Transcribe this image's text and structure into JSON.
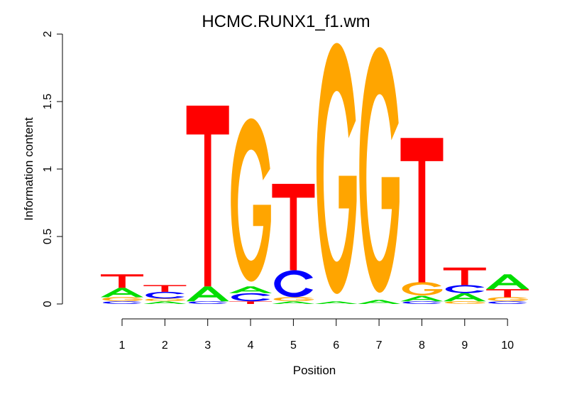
{
  "chart_data": {
    "type": "sequence-logo",
    "title": "HCMC.RUNX1_f1.wm",
    "xlabel": "Position",
    "ylabel": "Information content",
    "ylim": [
      0,
      2
    ],
    "yticks": [
      "0",
      "0.5",
      "1",
      "1.5",
      "2"
    ],
    "categories": [
      "1",
      "2",
      "3",
      "4",
      "5",
      "6",
      "7",
      "8",
      "9",
      "10"
    ],
    "colors": {
      "A": "#00dd00",
      "C": "#0000ff",
      "G": "#ffa500",
      "T": "#ff0000"
    },
    "positions": [
      [
        [
          "C",
          0.02
        ],
        [
          "G",
          0.03
        ],
        [
          "A",
          0.07
        ],
        [
          "T",
          0.1
        ]
      ],
      [
        [
          "A",
          0.02
        ],
        [
          "G",
          0.02
        ],
        [
          "C",
          0.05
        ],
        [
          "T",
          0.05
        ]
      ],
      [
        [
          "C",
          0.02
        ],
        [
          "A",
          0.11
        ],
        [
          "T",
          1.34
        ]
      ],
      [
        [
          "T",
          0.02
        ],
        [
          "C",
          0.06
        ],
        [
          "A",
          0.05
        ],
        [
          "G",
          1.21
        ]
      ],
      [
        [
          "A",
          0.02
        ],
        [
          "G",
          0.03
        ],
        [
          "C",
          0.2
        ],
        [
          "T",
          0.64
        ]
      ],
      [
        [
          "A",
          0.02
        ],
        [
          "G",
          1.86
        ]
      ],
      [
        [
          "A",
          0.03
        ],
        [
          "G",
          1.82
        ]
      ],
      [
        [
          "C",
          0.02
        ],
        [
          "A",
          0.04
        ],
        [
          "G",
          0.1
        ],
        [
          "T",
          1.07
        ]
      ],
      [
        [
          "G",
          0.02
        ],
        [
          "A",
          0.06
        ],
        [
          "C",
          0.06
        ],
        [
          "T",
          0.13
        ]
      ],
      [
        [
          "C",
          0.02
        ],
        [
          "G",
          0.03
        ],
        [
          "T",
          0.06
        ],
        [
          "A",
          0.11
        ]
      ]
    ]
  }
}
